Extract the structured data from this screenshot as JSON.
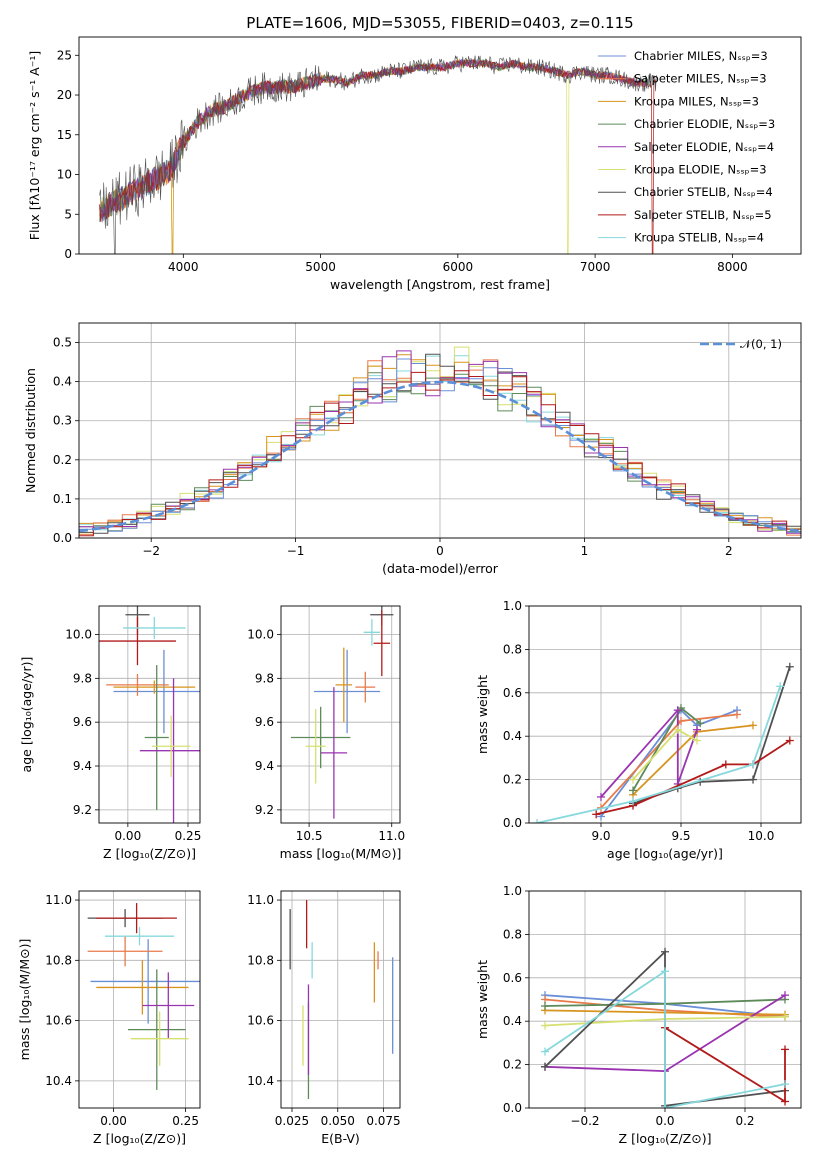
{
  "title": "PLATE=1606, MJD=53055, FIBERID=0403, z=0.115",
  "colors": {
    "Chabrier MILES": "#6b8fd6",
    "Salpeter MILES": "#e87a4a",
    "Kroupa MILES": "#d8941e",
    "Chabrier ELODIE": "#5e8a5a",
    "Salpeter ELODIE": "#9a34b0",
    "Kroupa ELODIE": "#d6e070",
    "Chabrier STELIB": "#505050",
    "Salpeter STELIB": "#b21a1a",
    "Kroupa STELIB": "#86d8dc",
    "normal": "#5b8fd8"
  },
  "chart_data": [
    {
      "id": "spectrum",
      "type": "line",
      "xlabel": "wavelength [Angstrom, rest frame]",
      "ylabel": "Flux [fλ10⁻¹⁷ erg cm⁻² s⁻¹ A⁻¹]",
      "xlim": [
        3240,
        8500
      ],
      "ylim": [
        0,
        27.3
      ],
      "xticks": [
        4000,
        5000,
        6000,
        7000,
        8000
      ],
      "yticks": [
        0,
        5,
        10,
        15,
        20,
        25
      ],
      "legend_position": "right",
      "x": [
        3400,
        3500,
        3600,
        3700,
        3800,
        3900,
        4000,
        4100,
        4200,
        4300,
        4400,
        4500,
        4600,
        4700,
        4800,
        4900,
        5000,
        5100,
        5200,
        5300,
        5400,
        5500,
        5600,
        5700,
        5800,
        5900,
        6000,
        6100,
        6200,
        6300,
        6400,
        6500,
        6600,
        6700,
        6800,
        6900,
        7000,
        7100,
        7200,
        7300,
        7400,
        7500,
        7600,
        7700,
        7800,
        7900,
        8000,
        8100,
        8200,
        8300
      ],
      "flux": [
        5.5,
        6.5,
        7.5,
        8.5,
        9.5,
        10.5,
        14,
        16.5,
        18,
        18.5,
        19.5,
        20.5,
        21,
        21,
        21,
        21.5,
        22,
        22,
        21.5,
        22.5,
        22.5,
        23,
        23,
        23.5,
        23.5,
        23.5,
        24,
        24,
        24,
        23.5,
        24,
        23.5,
        23.5,
        23,
        22.5,
        23,
        22.5,
        22.5,
        22,
        21.5,
        21.5,
        21.5,
        21,
        21,
        20.5,
        20.5,
        20.5,
        20,
        20,
        19.5
      ],
      "series": [
        {
          "name": "Chabrier MILES, Nₛₛₚ=3"
        },
        {
          "name": "Salpeter MILES, Nₛₛₚ=3"
        },
        {
          "name": "Kroupa MILES, Nₛₛₚ=3"
        },
        {
          "name": "Chabrier ELODIE, Nₛₛₚ=3"
        },
        {
          "name": "Salpeter ELODIE, Nₛₛₚ=4"
        },
        {
          "name": "Kroupa ELODIE, Nₛₛₚ=3"
        },
        {
          "name": "Chabrier STELIB, Nₛₛₚ=4"
        },
        {
          "name": "Salpeter STELIB, Nₛₛₚ=5"
        },
        {
          "name": "Kroupa STELIB, Nₛₛₚ=4"
        }
      ]
    },
    {
      "id": "residuals",
      "type": "histogram",
      "xlabel": "(data-model)/error",
      "ylabel": "Normed distribution",
      "xlim": [
        -2.5,
        2.5
      ],
      "ylim": [
        0,
        0.55
      ],
      "xticks": [
        -2,
        -1,
        0,
        1,
        2
      ],
      "yticks": [
        0.0,
        0.1,
        0.2,
        0.3,
        0.4,
        0.5
      ],
      "grid": true,
      "bin_width": 0.1,
      "normal_label": "𝒩(0, 1)",
      "legend_position": "top-right"
    },
    {
      "id": "age-vs-Z",
      "type": "errorbar",
      "xlabel": "Z [log₁₀(Z/Z⊙)]",
      "ylabel": "age  [log₁₀(age/yr)]",
      "xlim": [
        -0.12,
        0.3
      ],
      "ylim": [
        9.14,
        10.13
      ],
      "xticks": [
        0.0,
        0.25
      ],
      "xticklabels": [
        "0.00",
        "0.25"
      ],
      "yticks": [
        9.2,
        9.4,
        9.6,
        9.8,
        10.0
      ],
      "grid": true,
      "points": [
        {
          "x": 0.15,
          "y": 9.74,
          "xerr": 0.21,
          "yerr": 0.19,
          "color": "Chabrier MILES"
        },
        {
          "x": 0.04,
          "y": 9.77,
          "xerr": 0.13,
          "yerr": 0.05,
          "color": "Salpeter MILES"
        },
        {
          "x": 0.11,
          "y": 9.76,
          "xerr": 0.17,
          "yerr": 0.03,
          "color": "Kroupa MILES"
        },
        {
          "x": 0.12,
          "y": 9.53,
          "xerr": 0.05,
          "yerr": 0.33,
          "color": "Chabrier ELODIE"
        },
        {
          "x": 0.19,
          "y": 9.47,
          "xerr": 0.14,
          "yerr": 0.33,
          "color": "Salpeter ELODIE"
        },
        {
          "x": 0.18,
          "y": 9.49,
          "xerr": 0.08,
          "yerr": 0.14,
          "color": "Kroupa ELODIE"
        },
        {
          "x": 0.04,
          "y": 10.09,
          "xerr": 0.05,
          "yerr": 0.09,
          "color": "Chabrier STELIB"
        },
        {
          "x": 0.04,
          "y": 9.97,
          "xerr": 0.16,
          "yerr": 0.11,
          "color": "Salpeter STELIB"
        },
        {
          "x": 0.11,
          "y": 10.03,
          "xerr": 0.13,
          "yerr": 0.05,
          "color": "Kroupa STELIB"
        }
      ]
    },
    {
      "id": "age-vs-mass",
      "type": "errorbar",
      "xlabel": "mass [log₁₀(M/M⊙)]",
      "ylabel": "",
      "xlim": [
        10.33,
        11.05
      ],
      "ylim": [
        9.14,
        10.13
      ],
      "xticks": [
        10.5,
        11.0
      ],
      "yticks": [
        9.2,
        9.4,
        9.6,
        9.8,
        10.0
      ],
      "grid": true,
      "points": [
        {
          "x": 10.73,
          "y": 9.74,
          "xerr": 0.2,
          "yerr": 0.19,
          "color": "Chabrier MILES"
        },
        {
          "x": 10.84,
          "y": 9.76,
          "xerr": 0.06,
          "yerr": 0.07,
          "color": "Salpeter MILES"
        },
        {
          "x": 10.71,
          "y": 9.77,
          "xerr": 0.05,
          "yerr": 0.17,
          "color": "Kroupa MILES"
        },
        {
          "x": 10.57,
          "y": 9.53,
          "xerr": 0.18,
          "yerr": 0.14,
          "color": "Chabrier ELODIE"
        },
        {
          "x": 10.65,
          "y": 9.46,
          "xerr": 0.08,
          "yerr": 0.3,
          "color": "Salpeter ELODIE"
        },
        {
          "x": 10.54,
          "y": 9.49,
          "xerr": 0.06,
          "yerr": 0.17,
          "color": "Kroupa ELODIE"
        },
        {
          "x": 10.94,
          "y": 10.09,
          "xerr": 0.07,
          "yerr": 0.05,
          "color": "Chabrier STELIB"
        },
        {
          "x": 10.94,
          "y": 9.96,
          "xerr": 0.05,
          "yerr": 0.15,
          "color": "Salpeter STELIB"
        },
        {
          "x": 10.88,
          "y": 10.01,
          "xerr": 0.05,
          "yerr": 0.06,
          "color": "Kroupa STELIB"
        }
      ]
    },
    {
      "id": "weight-vs-age",
      "type": "line",
      "xlabel": "age  [log₁₀(age/yr)]",
      "ylabel": "mass weight",
      "xlim": [
        8.55,
        10.25
      ],
      "ylim": [
        0,
        1
      ],
      "xticks": [
        9.0,
        9.5,
        10.0
      ],
      "yticks": [
        0.0,
        0.2,
        0.4,
        0.6,
        0.8,
        1.0
      ],
      "grid": true,
      "series": [
        {
          "color": "Chabrier MILES",
          "points": [
            [
              9.0,
              0.03
            ],
            [
              9.5,
              0.52
            ],
            [
              9.6,
              0.45
            ],
            [
              9.85,
              0.52
            ]
          ]
        },
        {
          "color": "Salpeter MILES",
          "points": [
            [
              9.0,
              0.07
            ],
            [
              9.5,
              0.47
            ],
            [
              9.85,
              0.5
            ]
          ]
        },
        {
          "color": "Kroupa MILES",
          "points": [
            [
              9.2,
              0.13
            ],
            [
              9.6,
              0.42
            ],
            [
              9.95,
              0.45
            ]
          ]
        },
        {
          "color": "Chabrier ELODIE",
          "points": [
            [
              9.2,
              0.15
            ],
            [
              9.5,
              0.53
            ],
            [
              9.62,
              0.46
            ]
          ]
        },
        {
          "color": "Salpeter ELODIE",
          "points": [
            [
              9.0,
              0.12
            ],
            [
              9.48,
              0.52
            ],
            [
              9.48,
              0.18
            ],
            [
              9.6,
              0.43
            ]
          ]
        },
        {
          "color": "Kroupa ELODIE",
          "points": [
            [
              9.2,
              0.2
            ],
            [
              9.48,
              0.43
            ],
            [
              9.6,
              0.38
            ]
          ]
        },
        {
          "color": "Chabrier STELIB",
          "points": [
            [
              9.2,
              0.09
            ],
            [
              9.48,
              0.16
            ],
            [
              9.62,
              0.19
            ],
            [
              9.95,
              0.2
            ],
            [
              10.18,
              0.72
            ]
          ]
        },
        {
          "color": "Salpeter STELIB",
          "points": [
            [
              8.97,
              0.04
            ],
            [
              9.2,
              0.08
            ],
            [
              9.78,
              0.27
            ],
            [
              9.95,
              0.27
            ],
            [
              10.18,
              0.38
            ]
          ]
        },
        {
          "color": "Kroupa STELIB",
          "points": [
            [
              8.6,
              0.0
            ],
            [
              9.2,
              0.1
            ],
            [
              9.95,
              0.27
            ],
            [
              10.12,
              0.63
            ]
          ]
        }
      ]
    },
    {
      "id": "mass-vs-Z",
      "type": "errorbar",
      "xlabel": "Z [log₁₀(Z/Z⊙)]",
      "ylabel": "mass [log₁₀(M/M⊙)]",
      "xlim": [
        -0.12,
        0.3
      ],
      "ylim": [
        10.31,
        11.03
      ],
      "xticks": [
        0.0,
        0.25
      ],
      "xticklabels": [
        "0.00",
        "0.25"
      ],
      "yticks": [
        10.4,
        10.6,
        10.8,
        11.0
      ],
      "grid": true,
      "points": [
        {
          "x": 0.12,
          "y": 10.73,
          "xerr": 0.2,
          "yerr": 0.14,
          "color": "Chabrier MILES"
        },
        {
          "x": 0.04,
          "y": 10.83,
          "xerr": 0.13,
          "yerr": 0.05,
          "color": "Salpeter MILES"
        },
        {
          "x": 0.1,
          "y": 10.71,
          "xerr": 0.16,
          "yerr": 0.09,
          "color": "Kroupa MILES"
        },
        {
          "x": 0.15,
          "y": 10.57,
          "xerr": 0.1,
          "yerr": 0.2,
          "color": "Chabrier ELODIE"
        },
        {
          "x": 0.19,
          "y": 10.65,
          "xerr": 0.09,
          "yerr": 0.11,
          "color": "Salpeter ELODIE"
        },
        {
          "x": 0.16,
          "y": 10.54,
          "xerr": 0.1,
          "yerr": 0.09,
          "color": "Kroupa ELODIE"
        },
        {
          "x": 0.04,
          "y": 10.94,
          "xerr": 0.13,
          "yerr": 0.03,
          "color": "Chabrier STELIB"
        },
        {
          "x": 0.08,
          "y": 10.94,
          "xerr": 0.14,
          "yerr": 0.05,
          "color": "Salpeter STELIB"
        },
        {
          "x": 0.09,
          "y": 10.88,
          "xerr": 0.12,
          "yerr": 0.03,
          "color": "Kroupa STELIB"
        }
      ]
    },
    {
      "id": "mass-vs-EBV",
      "type": "errorbar",
      "xlabel": "E(B-V)",
      "ylabel": "",
      "xlim": [
        0.019,
        0.084
      ],
      "ylim": [
        10.31,
        11.03
      ],
      "xticks": [
        0.025,
        0.05,
        0.075
      ],
      "xticklabels": [
        "0.025",
        "0.050",
        "0.075"
      ],
      "yticks": [
        10.4,
        10.6,
        10.8,
        11.0
      ],
      "grid": true,
      "points": [
        {
          "x": 0.08,
          "y": 10.65,
          "xerr": 0.0,
          "yerr": 0.16,
          "color": "Chabrier MILES"
        },
        {
          "x": 0.072,
          "y": 10.8,
          "xerr": 0.0,
          "yerr": 0.03,
          "color": "Salpeter MILES"
        },
        {
          "x": 0.07,
          "y": 10.76,
          "xerr": 0.0,
          "yerr": 0.1,
          "color": "Kroupa MILES"
        },
        {
          "x": 0.034,
          "y": 10.5,
          "xerr": 0.0,
          "yerr": 0.16,
          "color": "Chabrier ELODIE"
        },
        {
          "x": 0.034,
          "y": 10.57,
          "xerr": 0.0,
          "yerr": 0.15,
          "color": "Salpeter ELODIE"
        },
        {
          "x": 0.031,
          "y": 10.55,
          "xerr": 0.0,
          "yerr": 0.1,
          "color": "Kroupa ELODIE"
        },
        {
          "x": 0.024,
          "y": 10.87,
          "xerr": 0.0,
          "yerr": 0.1,
          "color": "Chabrier STELIB"
        },
        {
          "x": 0.033,
          "y": 10.92,
          "xerr": 0.0,
          "yerr": 0.08,
          "color": "Salpeter STELIB"
        },
        {
          "x": 0.036,
          "y": 10.8,
          "xerr": 0.0,
          "yerr": 0.06,
          "color": "Kroupa STELIB"
        }
      ]
    },
    {
      "id": "weight-vs-Z",
      "type": "line",
      "xlabel": "Z [log₁₀(Z/Z⊙)]",
      "ylabel": "mass weight",
      "xlim": [
        -0.34,
        0.34
      ],
      "ylim": [
        0,
        1
      ],
      "xticks": [
        -0.2,
        0.0,
        0.2
      ],
      "xticklabels": [
        "−0.2",
        "0.0",
        "0.2"
      ],
      "yticks": [
        0.0,
        0.2,
        0.4,
        0.6,
        0.8,
        1.0
      ],
      "grid": true,
      "series": [
        {
          "color": "Chabrier MILES",
          "points": [
            [
              -0.3,
              0.52
            ],
            [
              0.0,
              0.48
            ],
            [
              0.3,
              0.42
            ]
          ]
        },
        {
          "color": "Salpeter MILES",
          "points": [
            [
              -0.3,
              0.5
            ],
            [
              0.0,
              0.45
            ],
            [
              0.3,
              0.42
            ]
          ]
        },
        {
          "color": "Kroupa MILES",
          "points": [
            [
              -0.3,
              0.45
            ],
            [
              0.0,
              0.44
            ],
            [
              0.3,
              0.43
            ]
          ]
        },
        {
          "color": "Chabrier ELODIE",
          "points": [
            [
              -0.3,
              0.47
            ],
            [
              0.0,
              0.48
            ],
            [
              0.3,
              0.5
            ]
          ]
        },
        {
          "color": "Salpeter ELODIE",
          "points": [
            [
              -0.3,
              0.19
            ],
            [
              0.0,
              0.17
            ],
            [
              0.3,
              0.52
            ]
          ]
        },
        {
          "color": "Kroupa ELODIE",
          "points": [
            [
              -0.3,
              0.38
            ],
            [
              0.0,
              0.41
            ],
            [
              0.3,
              0.42
            ]
          ]
        },
        {
          "color": "Chabrier STELIB",
          "points": [
            [
              -0.3,
              0.19
            ],
            [
              0.0,
              0.72
            ],
            [
              0.0,
              0.01
            ],
            [
              0.3,
              0.08
            ]
          ]
        },
        {
          "color": "Salpeter STELIB",
          "points": [
            [
              0.0,
              0.37
            ],
            [
              0.3,
              0.03
            ],
            [
              0.3,
              0.27
            ]
          ]
        },
        {
          "color": "Kroupa STELIB",
          "points": [
            [
              -0.3,
              0.26
            ],
            [
              0.0,
              0.63
            ],
            [
              0.0,
              0.0
            ],
            [
              0.3,
              0.11
            ]
          ]
        }
      ]
    }
  ]
}
